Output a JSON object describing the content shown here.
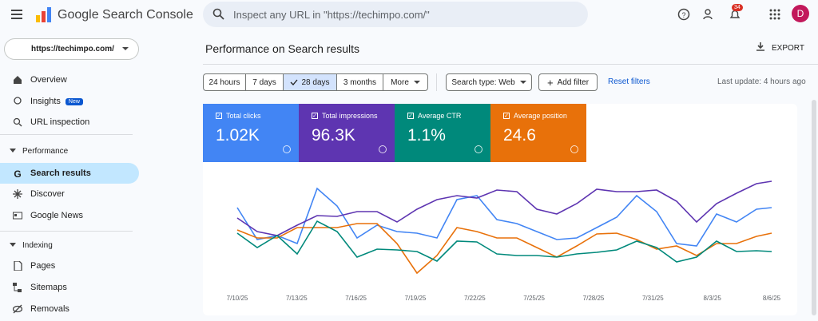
{
  "header": {
    "product": "Google Search Console",
    "search_placeholder": "Inspect any URL in \"https://techimpo.com/\"",
    "notifications": "34",
    "avatar": "D"
  },
  "sidebar": {
    "property": "https://techimpo.com/",
    "items": [
      "Overview",
      "Insights",
      "URL inspection"
    ],
    "insights_badge": "New",
    "sections": [
      {
        "title": "Performance",
        "items": [
          "Search results",
          "Discover",
          "Google News"
        ]
      },
      {
        "title": "Indexing",
        "items": [
          "Pages",
          "Sitemaps",
          "Removals"
        ]
      }
    ]
  },
  "main": {
    "title": "Performance on Search results",
    "export": "EXPORT",
    "date_ranges": [
      "24 hours",
      "7 days",
      "28 days",
      "3 months",
      "More"
    ],
    "selected_range": "28 days",
    "search_type": "Search type: Web",
    "add_filter": "Add filter",
    "reset_filters": "Reset filters",
    "last_update": "Last update: 4 hours ago",
    "metrics": [
      {
        "label": "Total clicks",
        "value": "1.02K"
      },
      {
        "label": "Total impressions",
        "value": "96.3K"
      },
      {
        "label": "Average CTR",
        "value": "1.1%"
      },
      {
        "label": "Average position",
        "value": "24.6"
      }
    ],
    "x_labels": [
      "7/10/25",
      "7/13/25",
      "7/16/25",
      "7/19/25",
      "7/22/25",
      "7/25/25",
      "7/28/25",
      "7/31/25",
      "8/3/25",
      "8/6/25"
    ]
  }
}
